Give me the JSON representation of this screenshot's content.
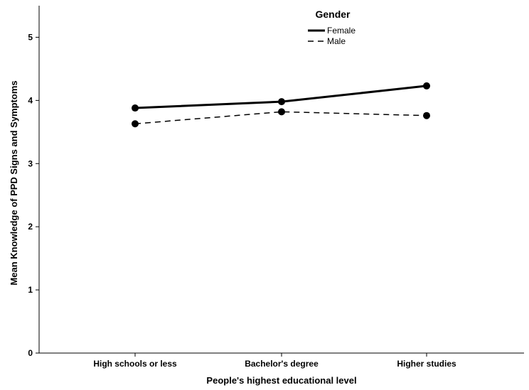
{
  "chart_data": {
    "type": "line",
    "title": "",
    "xlabel": "People's highest educational level",
    "ylabel": "Mean Knowledge of PPD  Signs and Symptoms",
    "categories": [
      "High schools or less",
      "Bachelor's degree",
      "Higher studies"
    ],
    "ylim": [
      0,
      5.5
    ],
    "yticks": [
      "0",
      "1",
      "2",
      "3",
      "4",
      "5"
    ],
    "grid": false,
    "legend": {
      "title": "Gender",
      "position": "top-center"
    },
    "series": [
      {
        "name": "Female",
        "values": [
          3.88,
          3.98,
          4.23
        ],
        "style": "solid",
        "color": "#000000"
      },
      {
        "name": "Male",
        "values": [
          3.63,
          3.82,
          3.76
        ],
        "style": "dashed",
        "color": "#000000"
      }
    ]
  }
}
